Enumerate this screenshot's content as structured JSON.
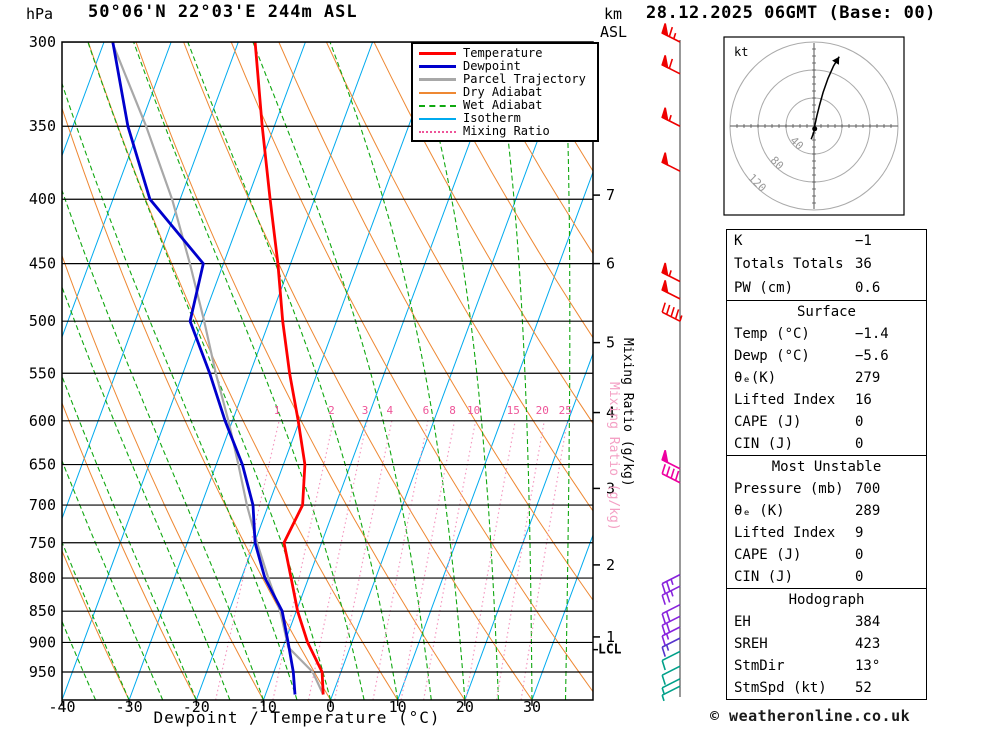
{
  "header": {
    "pressure_unit": "hPa",
    "title": "50°06'N 22°03'E 244m ASL",
    "altitude_unit_line1": "km",
    "altitude_unit_line2": "ASL",
    "datetime": "28.12.2025 06GMT (Base: 00)"
  },
  "footer": {
    "xlabel": "Dewpoint / Temperature (°C)",
    "copyright": "© weatheronline.co.uk"
  },
  "legend": {
    "items": [
      {
        "id": "temperature",
        "label": "Temperature",
        "color": "#ff0000",
        "style": "solid",
        "width": 3
      },
      {
        "id": "dewpoint",
        "label": "Dewpoint",
        "color": "#0000cc",
        "style": "solid",
        "width": 3
      },
      {
        "id": "parcel",
        "label": "Parcel Trajectory",
        "color": "#a8a8a8",
        "style": "solid",
        "width": 3
      },
      {
        "id": "dry-adiabat",
        "label": "Dry Adiabat",
        "color": "#ee8833",
        "style": "solid",
        "width": 2
      },
      {
        "id": "wet-adiabat",
        "label": "Wet Adiabat",
        "color": "#10a810",
        "style": "dashed",
        "width": 2
      },
      {
        "id": "isotherm",
        "label": "Isotherm",
        "color": "#00aaee",
        "style": "solid",
        "width": 2
      },
      {
        "id": "mixing-ratio",
        "label": "Mixing Ratio",
        "color": "#ee5599",
        "style": "dotted",
        "width": 2
      }
    ]
  },
  "hodograph": {
    "unit": "kt",
    "rings_kt": [
      40,
      80,
      120
    ],
    "trace_uv_kt": [
      [
        -4,
        -19
      ],
      [
        0,
        -8
      ],
      [
        1,
        0
      ],
      [
        4,
        14
      ],
      [
        8,
        30
      ],
      [
        13,
        48
      ],
      [
        20,
        68
      ],
      [
        28,
        86
      ],
      [
        36,
        99
      ]
    ],
    "dot_uv_kt": [
      1,
      -4
    ]
  },
  "indices": {
    "general": {
      "rows": [
        [
          "K",
          "−1"
        ],
        [
          "Totals Totals",
          "36"
        ],
        [
          "PW (cm)",
          "0.6"
        ]
      ]
    },
    "surface": {
      "title": "Surface",
      "rows": [
        [
          "Temp (°C)",
          "−1.4"
        ],
        [
          "Dewp (°C)",
          "−5.6"
        ],
        [
          "θₑ(K)",
          "279"
        ],
        [
          "Lifted Index",
          "16"
        ],
        [
          "CAPE (J)",
          "0"
        ],
        [
          "CIN (J)",
          "0"
        ]
      ]
    },
    "most_unstable": {
      "title": "Most Unstable",
      "rows": [
        [
          "Pressure (mb)",
          "700"
        ],
        [
          "θₑ (K)",
          "289"
        ],
        [
          "Lifted Index",
          "9"
        ],
        [
          "CAPE (J)",
          "0"
        ],
        [
          "CIN (J)",
          "0"
        ]
      ]
    },
    "hodograph_indices": {
      "title": "Hodograph",
      "rows": [
        [
          "EH",
          "384"
        ],
        [
          "SREH",
          "423"
        ],
        [
          "StmDir",
          "13°"
        ],
        [
          "StmSpd (kt)",
          "52"
        ]
      ]
    }
  },
  "chart_data": {
    "type": "skewt-logp-sounding",
    "location": "50°06'N 22°03'E 244m ASL",
    "valid": "28.12.2025 06GMT (Base: 00)",
    "pressure_range_hpa": [
      300,
      1000
    ],
    "temp_axis_range_c": [
      -40,
      39
    ],
    "axes": {
      "pressure_ticks_hpa": [
        300,
        350,
        400,
        450,
        500,
        550,
        600,
        650,
        700,
        750,
        800,
        850,
        900,
        950
      ],
      "temp_ticks_c": [
        -40,
        -30,
        -20,
        -10,
        0,
        10,
        20,
        30
      ],
      "km_asl_ticks": [
        [
          1,
          891
        ],
        [
          2,
          781
        ],
        [
          3,
          679
        ],
        [
          4,
          591
        ],
        [
          5,
          520
        ],
        [
          6,
          450
        ],
        [
          7,
          397
        ]
      ],
      "lcl": {
        "label": "LCL",
        "pressure_hpa": 912
      },
      "mixing_ratio_axis_label": "Mixing Ratio (g/kg)"
    },
    "background": {
      "isotherm_c": {
        "min": -90,
        "max": 30,
        "step": 10
      },
      "dry_adiabat_theta_c": {
        "min": -40,
        "max": 120,
        "step": 10
      },
      "wet_adiabat_start_c": {
        "min": -40,
        "max": 35,
        "step": 5
      },
      "mixing_ratio_g_kg": [
        1,
        2,
        3,
        4,
        6,
        8,
        10,
        15,
        20,
        25
      ],
      "mixing_ratio_label_pressure_hpa": 600
    },
    "temperature_profile_p_t": [
      [
        990,
        -1.4
      ],
      [
        950,
        -2.8
      ],
      [
        900,
        -6.6
      ],
      [
        850,
        -9.8
      ],
      [
        800,
        -12.6
      ],
      [
        750,
        -15.6
      ],
      [
        700,
        -14.9
      ],
      [
        650,
        -16.8
      ],
      [
        600,
        -20.2
      ],
      [
        550,
        -24.1
      ],
      [
        500,
        -28.0
      ],
      [
        450,
        -31.9
      ],
      [
        400,
        -36.6
      ],
      [
        350,
        -41.8
      ],
      [
        300,
        -47.5
      ]
    ],
    "dewpoint_profile_p_t": [
      [
        990,
        -5.6
      ],
      [
        950,
        -7.1
      ],
      [
        900,
        -9.5
      ],
      [
        850,
        -12.1
      ],
      [
        800,
        -16.5
      ],
      [
        750,
        -19.9
      ],
      [
        700,
        -22.3
      ],
      [
        650,
        -26.1
      ],
      [
        600,
        -31.1
      ],
      [
        550,
        -36.0
      ],
      [
        500,
        -41.8
      ],
      [
        450,
        -43.0
      ],
      [
        400,
        -54.5
      ],
      [
        350,
        -61.8
      ],
      [
        300,
        -68.7
      ]
    ],
    "parcel_profile_p_t": [
      [
        990,
        -1.4
      ],
      [
        950,
        -4.2
      ],
      [
        908,
        -9.2
      ],
      [
        850,
        -12.4
      ],
      [
        800,
        -16.0
      ],
      [
        750,
        -19.6
      ],
      [
        700,
        -23.2
      ],
      [
        650,
        -26.7
      ],
      [
        600,
        -30.6
      ],
      [
        550,
        -35.1
      ],
      [
        500,
        -39.7
      ],
      [
        450,
        -45.0
      ],
      [
        400,
        -51.2
      ],
      [
        350,
        -59.1
      ],
      [
        300,
        -68.8
      ]
    ],
    "wind_barbs": [
      {
        "p": 300,
        "spd_kt": 65,
        "color": "#ee0000"
      },
      {
        "p": 318,
        "spd_kt": 60,
        "color": "#ee0000"
      },
      {
        "p": 350,
        "spd_kt": 55,
        "color": "#ee0000"
      },
      {
        "p": 380,
        "spd_kt": 50,
        "color": "#ee0000"
      },
      {
        "p": 465,
        "spd_kt": 55,
        "color": "#ee0000"
      },
      {
        "p": 480,
        "spd_kt": 50,
        "color": "#ee0000"
      },
      {
        "p": 500,
        "spd_kt": 45,
        "color": "#ee0000"
      },
      {
        "p": 655,
        "spd_kt": 50,
        "color": "#ee00a0"
      },
      {
        "p": 672,
        "spd_kt": 40,
        "color": "#ee00a0"
      },
      {
        "p": 795,
        "spd_kt": 25,
        "color": "#8822dd"
      },
      {
        "p": 812,
        "spd_kt": 25,
        "color": "#8822dd"
      },
      {
        "p": 840,
        "spd_kt": 20,
        "color": "#8822dd"
      },
      {
        "p": 858,
        "spd_kt": 20,
        "color": "#8822dd"
      },
      {
        "p": 875,
        "spd_kt": 15,
        "color": "#8822dd"
      },
      {
        "p": 893,
        "spd_kt": 15,
        "color": "#5533cc"
      },
      {
        "p": 915,
        "spd_kt": 10,
        "color": "#00a089"
      },
      {
        "p": 940,
        "spd_kt": 10,
        "color": "#00a089"
      },
      {
        "p": 962,
        "spd_kt": 5,
        "color": "#00a089"
      },
      {
        "p": 975,
        "spd_kt": 5,
        "color": "#00a089"
      }
    ]
  }
}
